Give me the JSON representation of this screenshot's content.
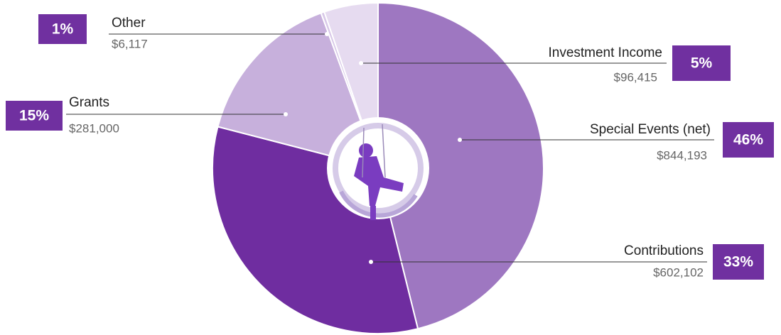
{
  "chart_data": {
    "type": "donut",
    "categories": [
      "Special Events (net)",
      "Contributions",
      "Grants",
      "Other",
      "Investment Income"
    ],
    "values": [
      46,
      33,
      15,
      1,
      5
    ],
    "value_labels": [
      "46%",
      "33%",
      "15%",
      "1%",
      "5%"
    ],
    "amounts": [
      844193,
      602102,
      281000,
      6117,
      96415
    ],
    "amount_labels": [
      "$844,193",
      "$602,102",
      "$281,000",
      "$6,117",
      "$96,415"
    ],
    "colors": [
      "#9e77c1",
      "#6f2da0",
      "#c7b0dc",
      "#d8c8e8",
      "#e6dbf0"
    ],
    "label_color": "#7030a0"
  }
}
